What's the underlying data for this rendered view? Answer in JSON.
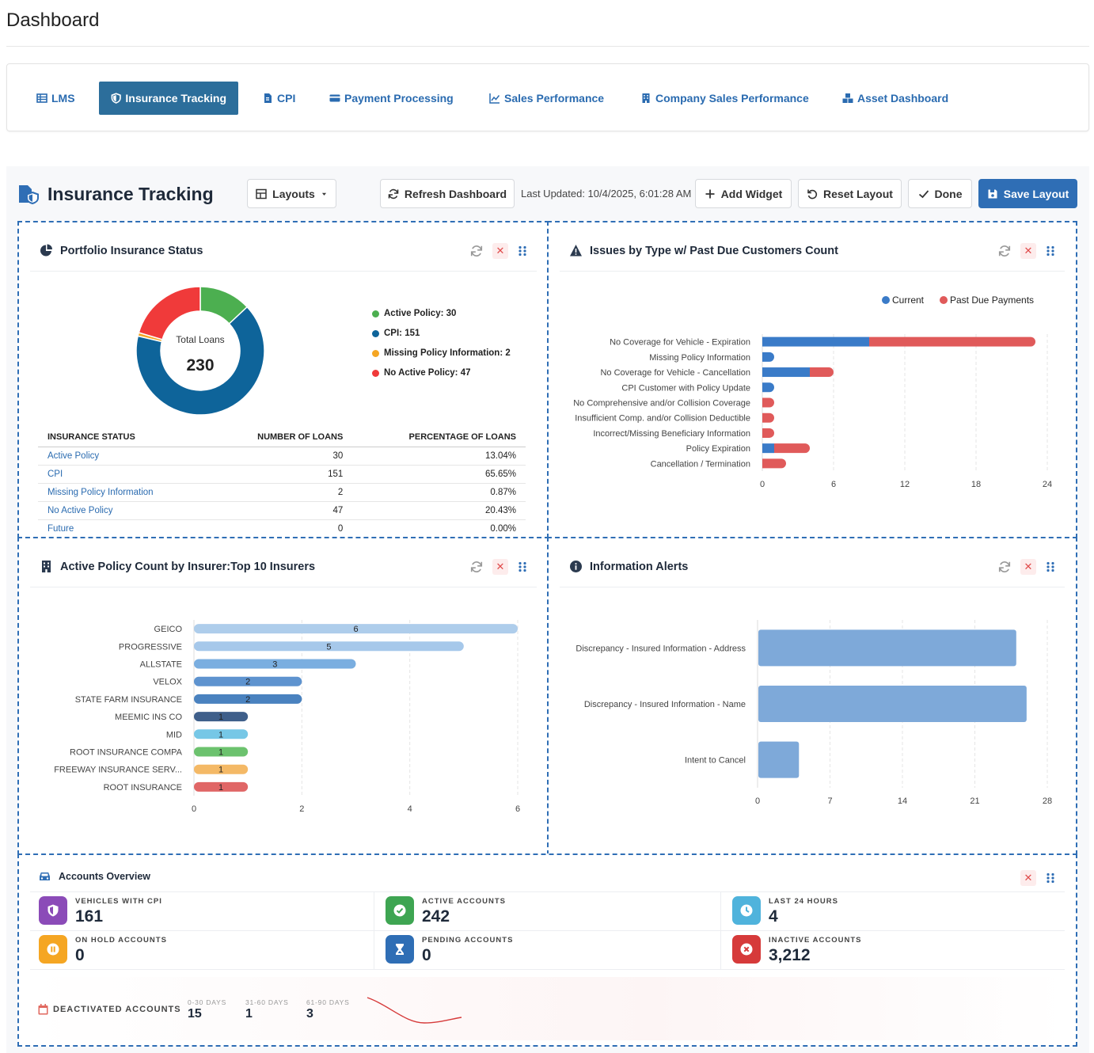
{
  "page": {
    "title": "Dashboard"
  },
  "tabs": [
    {
      "label": "LMS",
      "icon": "table-icon"
    },
    {
      "label": "Insurance Tracking",
      "icon": "shield-icon",
      "active": true
    },
    {
      "label": "CPI",
      "icon": "file-icon"
    },
    {
      "label": "Payment Processing",
      "icon": "credit-card-icon"
    },
    {
      "label": "Sales Performance",
      "icon": "line-chart-icon"
    },
    {
      "label": "Company Sales Performance",
      "icon": "building-icon"
    },
    {
      "label": "Asset Dashboard",
      "icon": "boxes-icon"
    }
  ],
  "header": {
    "title": "Insurance Tracking",
    "layouts_label": "Layouts",
    "refresh_label": "Refresh Dashboard",
    "last_updated": "Last Updated: 10/4/2025, 6:01:28 AM",
    "add_widget_label": "Add Widget",
    "reset_label": "Reset Layout",
    "done_label": "Done",
    "save_label": "Save Layout"
  },
  "colors": {
    "accent": "#2f6eb5",
    "green": "#4caf50",
    "blue": "#0e649a",
    "orange": "#f5a623",
    "red": "#f03a3a"
  },
  "portfolio": {
    "title": "Portfolio Insurance Status",
    "center_label": "Total Loans",
    "center_value": "230",
    "legend": [
      {
        "label": "Active Policy: 30",
        "color": "#4caf50"
      },
      {
        "label": "CPI: 151",
        "color": "#0e649a"
      },
      {
        "label": "Missing Policy Information: 2",
        "color": "#f5a623"
      },
      {
        "label": "No Active Policy: 47",
        "color": "#f03a3a"
      }
    ],
    "columns": [
      "INSURANCE STATUS",
      "NUMBER OF LOANS",
      "PERCENTAGE OF LOANS"
    ],
    "rows": [
      [
        "Active Policy",
        "30",
        "13.04%"
      ],
      [
        "CPI",
        "151",
        "65.65%"
      ],
      [
        "Missing Policy Information",
        "2",
        "0.87%"
      ],
      [
        "No Active Policy",
        "47",
        "20.43%"
      ],
      [
        "Future",
        "0",
        "0.00%"
      ]
    ]
  },
  "issues": {
    "title": "Issues by Type w/ Past Due Customers Count"
  },
  "insurers": {
    "title": "Active Policy Count by Insurer:Top 10 Insurers"
  },
  "alerts": {
    "title": "Information Alerts"
  },
  "chart_data": [
    {
      "type": "donut",
      "categories": [
        "Active Policy",
        "CPI",
        "Missing Policy Information",
        "No Active Policy"
      ],
      "values": [
        30,
        151,
        2,
        47
      ],
      "colors": [
        "#4caf50",
        "#0e649a",
        "#f5a623",
        "#f03a3a"
      ]
    },
    {
      "type": "bar",
      "orientation": "horizontal",
      "stacked": true,
      "categories": [
        "No Coverage for Vehicle - Expiration",
        "Missing Policy Information",
        "No Coverage for Vehicle - Cancellation",
        "CPI Customer with Policy Update",
        "No Comprehensive and/or Collision Coverage",
        "Insufficient Comp. and/or Collision Deductible",
        "Incorrect/Missing Beneficiary Information",
        "Policy Expiration",
        "Cancellation / Termination"
      ],
      "series": [
        {
          "name": "Current",
          "values": [
            9,
            1,
            4,
            1,
            0,
            0,
            0,
            1,
            0
          ],
          "color": "#3a7bc8"
        },
        {
          "name": "Past Due Payments",
          "values": [
            14,
            0,
            2,
            0,
            1,
            1,
            1,
            3,
            2
          ],
          "color": "#e05a5a"
        }
      ],
      "xlim": [
        0,
        24
      ],
      "xticks": [
        "0",
        "6",
        "12",
        "18",
        "24"
      ],
      "legend": "top-right"
    },
    {
      "type": "bar",
      "orientation": "horizontal",
      "categories": [
        "GEICO",
        "PROGRESSIVE",
        "ALLSTATE",
        "VELOX",
        "STATE FARM INSURANCE",
        "MEEMIC INS CO",
        "MID",
        "ROOT INSURANCE COMPA",
        "FREEWAY INSURANCE SERV...",
        "ROOT INSURANCE"
      ],
      "values": [
        6,
        5,
        3,
        2,
        2,
        1,
        1,
        1,
        1,
        1
      ],
      "colors": [
        "#aecdeb",
        "#a6c8ea",
        "#7aaee0",
        "#5e93cf",
        "#4a82bf",
        "#3f5f8a",
        "#76c7e6",
        "#6cc26e",
        "#f4b966",
        "#e06666"
      ],
      "xlim": [
        0,
        6
      ],
      "xticks": [
        "0",
        "2",
        "4",
        "6"
      ]
    },
    {
      "type": "bar",
      "orientation": "horizontal",
      "categories": [
        "Discrepancy - Insured Information - Address",
        "Discrepancy - Insured Information - Name",
        "Intent to Cancel"
      ],
      "values": [
        25,
        26,
        4
      ],
      "xlim": [
        0,
        28
      ],
      "xticks": [
        "0",
        "7",
        "14",
        "21",
        "28"
      ],
      "color": "#7ea9d9"
    }
  ],
  "accounts": {
    "title": "Accounts Overview",
    "stats": [
      {
        "label": "VEHICLES WITH CPI",
        "value": "161",
        "color": "#8b4bb8",
        "icon": "shield-icon"
      },
      {
        "label": "ACTIVE ACCOUNTS",
        "value": "242",
        "color": "#3ea552",
        "icon": "check-circle-icon"
      },
      {
        "label": "LAST 24 HOURS",
        "value": "4",
        "color": "#4fb3dc",
        "icon": "clock-icon"
      },
      {
        "label": "ON HOLD ACCOUNTS",
        "value": "0",
        "color": "#f5a623",
        "icon": "pause-circle-icon"
      },
      {
        "label": "PENDING ACCOUNTS",
        "value": "0",
        "color": "#2f6eb5",
        "icon": "hourglass-icon"
      },
      {
        "label": "INACTIVE ACCOUNTS",
        "value": "3,212",
        "color": "#d63a3a",
        "icon": "x-circle-icon"
      }
    ],
    "deactivated": {
      "label": "DEACTIVATED ACCOUNTS",
      "buckets": [
        {
          "label": "0-30 DAYS",
          "value": "15"
        },
        {
          "label": "31-60 DAYS",
          "value": "1"
        },
        {
          "label": "61-90 DAYS",
          "value": "3"
        }
      ]
    }
  }
}
